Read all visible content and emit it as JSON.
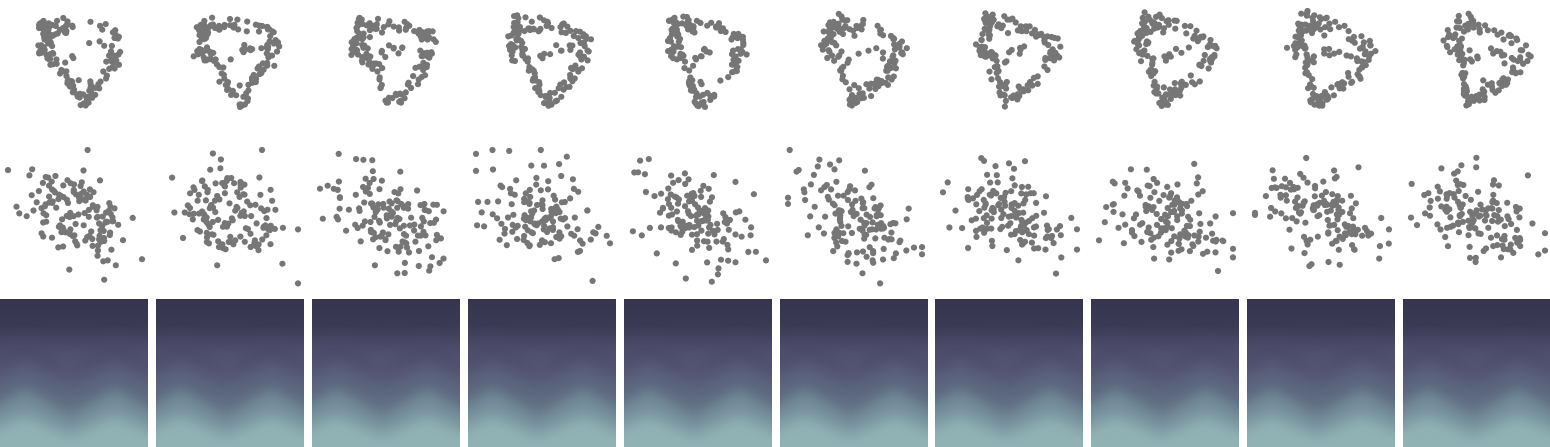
{
  "figure": {
    "columns": 10,
    "rows": [
      {
        "kind": "point-cloud",
        "variant": "structured-loop"
      },
      {
        "kind": "point-cloud",
        "variant": "scattered"
      },
      {
        "kind": "image-panel",
        "variant": "gradient-zigzag"
      }
    ],
    "colors": {
      "background": "#ffffff",
      "dot": "#767676",
      "gradient_top": "#35344d",
      "gradient_mid": "#5b5a7a",
      "gradient_low": "#7a9ea3",
      "gradient_bottom": "#a6cbc7"
    }
  }
}
